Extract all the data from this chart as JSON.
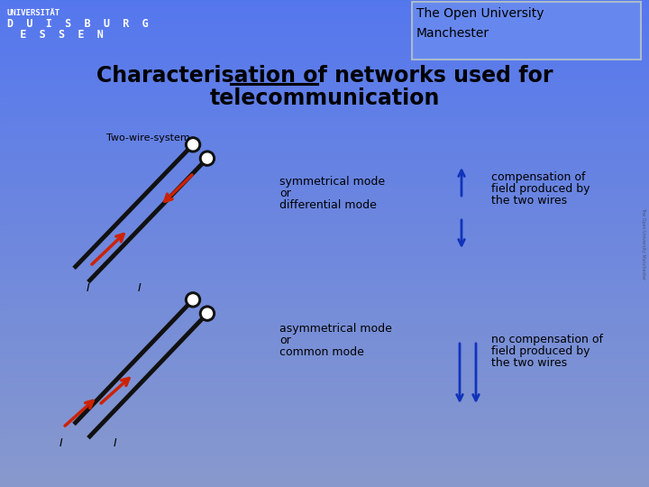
{
  "bg_color_top": "#5577ee",
  "bg_color_bottom": "#8899cc",
  "subtitle": "Two-wire-system",
  "ou_box_text1": "The Open University",
  "ou_box_text2": "Manchester",
  "uni_line1": "UNIVERSITÄT",
  "uni_line2": "D  U  I  S  B  U  R  G",
  "uni_line3": "  E  S  S  E  N",
  "label_sym1": "symmetrical mode",
  "label_sym2": "or",
  "label_sym3": "differential mode",
  "label_asym1": "asymmetrical mode",
  "label_asym2": "or",
  "label_asym3": "common mode",
  "label_comp1": "compensation of",
  "label_comp2": "field produced by",
  "label_comp3": "the two wires",
  "label_nocomp1": "no compensation of",
  "label_nocomp2": "field produced by",
  "label_nocomp3": "the two wires",
  "wire_color": "#111111",
  "arrow_red": "#cc2200",
  "arrow_blue": "#1133bb",
  "text_black": "#000000",
  "text_white": "#ffffff"
}
